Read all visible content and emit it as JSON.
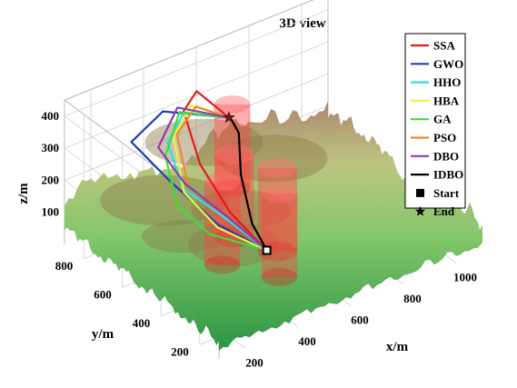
{
  "chart_data": {
    "type": "3d-path",
    "title": "3D view",
    "xlabel": "x/m",
    "ylabel": "y/m",
    "zlabel": "z/m",
    "x_ticks": [
      "200",
      "400",
      "600",
      "800",
      "1000"
    ],
    "y_ticks": [
      "200",
      "400",
      "600",
      "800"
    ],
    "z_ticks": [
      "100",
      "200",
      "300",
      "400"
    ],
    "xlim": [
      100,
      1100
    ],
    "ylim": [
      100,
      900
    ],
    "zlim": [
      0,
      450
    ],
    "legend_position": "top-right",
    "grid": true,
    "start": {
      "label": "Start",
      "x": 450,
      "y": 330,
      "z": 120
    },
    "end": {
      "label": "End",
      "x": 680,
      "y": 840,
      "z": 230
    },
    "obstacles": [
      {
        "x": 700,
        "y": 850,
        "r": 55,
        "h": 260
      },
      {
        "x": 540,
        "y": 620,
        "r": 60,
        "h": 260
      },
      {
        "x": 420,
        "y": 520,
        "r": 55,
        "h": 260
      },
      {
        "x": 600,
        "y": 480,
        "r": 60,
        "h": 260
      },
      {
        "x": 520,
        "y": 360,
        "r": 55,
        "h": 260
      }
    ],
    "series": [
      {
        "name": "SSA",
        "color": "#e41a1c",
        "points": [
          [
            450,
            330,
            120
          ],
          [
            400,
            450,
            200
          ],
          [
            380,
            580,
            300
          ],
          [
            420,
            720,
            390
          ],
          [
            550,
            830,
            360
          ],
          [
            680,
            840,
            230
          ]
        ]
      },
      {
        "name": "GWO",
        "color": "#1f3fbf",
        "points": [
          [
            450,
            330,
            120
          ],
          [
            330,
            420,
            200
          ],
          [
            250,
            560,
            300
          ],
          [
            200,
            690,
            380
          ],
          [
            400,
            800,
            360
          ],
          [
            680,
            840,
            230
          ]
        ]
      },
      {
        "name": "HHO",
        "color": "#2fe0e0",
        "points": [
          [
            450,
            330,
            120
          ],
          [
            370,
            450,
            200
          ],
          [
            300,
            560,
            260
          ],
          [
            330,
            680,
            340
          ],
          [
            480,
            800,
            330
          ],
          [
            680,
            840,
            230
          ]
        ]
      },
      {
        "name": "HBA",
        "color": "#f2f23a",
        "points": [
          [
            450,
            330,
            120
          ],
          [
            330,
            420,
            190
          ],
          [
            290,
            540,
            260
          ],
          [
            360,
            690,
            340
          ],
          [
            520,
            820,
            330
          ],
          [
            680,
            840,
            230
          ]
        ]
      },
      {
        "name": "GA",
        "color": "#3fdc3f",
        "points": [
          [
            450,
            330,
            120
          ],
          [
            300,
            420,
            180
          ],
          [
            250,
            520,
            240
          ],
          [
            300,
            650,
            320
          ],
          [
            470,
            810,
            330
          ],
          [
            680,
            840,
            230
          ]
        ]
      },
      {
        "name": "PSO",
        "color": "#f0882b",
        "points": [
          [
            450,
            330,
            120
          ],
          [
            390,
            440,
            190
          ],
          [
            320,
            560,
            260
          ],
          [
            380,
            700,
            340
          ],
          [
            540,
            820,
            320
          ],
          [
            680,
            840,
            230
          ]
        ]
      },
      {
        "name": "DBO",
        "color": "#8e3bb0",
        "points": [
          [
            450,
            330,
            120
          ],
          [
            380,
            440,
            200
          ],
          [
            300,
            550,
            280
          ],
          [
            280,
            660,
            350
          ],
          [
            470,
            820,
            340
          ],
          [
            680,
            840,
            230
          ]
        ]
      },
      {
        "name": "IDBO",
        "color": "#000000",
        "points": [
          [
            450,
            330,
            120
          ],
          [
            460,
            420,
            160
          ],
          [
            520,
            560,
            230
          ],
          [
            600,
            680,
            280
          ],
          [
            650,
            790,
            260
          ],
          [
            680,
            840,
            230
          ]
        ]
      }
    ]
  }
}
